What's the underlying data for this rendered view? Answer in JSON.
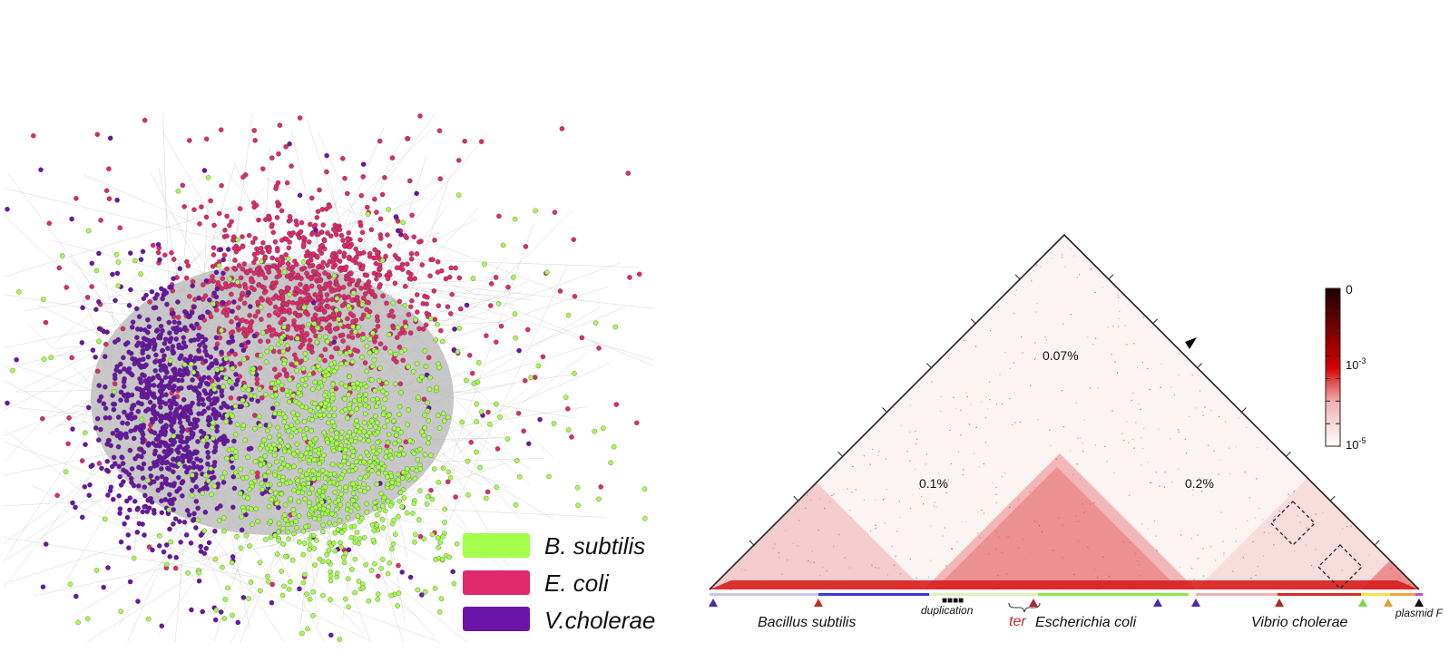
{
  "network": {
    "legend": [
      {
        "label": "B. subtilis",
        "color": "#a3ff4a"
      },
      {
        "label": "E. coli",
        "color": "#e0296a"
      },
      {
        "label": "V.cholerae",
        "color": "#6a14a8"
      }
    ],
    "edge_color": "#9a9a9a"
  },
  "contact_map": {
    "percent_labels": [
      "0.07%",
      "0.1%",
      "0.2%"
    ],
    "colorbar": {
      "top": "0",
      "mid": "10",
      "mid_exp": "-3",
      "bottom": "10",
      "bottom_exp": "-5",
      "colors": [
        "#1a0000",
        "#cc0000",
        "#ffffff"
      ]
    },
    "genomes": [
      "Bacillus subtilis",
      "Escherichia coli",
      "Vibrio cholerae",
      "plasmid F"
    ],
    "annotations": {
      "duplication": "duplication",
      "ter": "ter"
    },
    "genome_colors": {
      "bsub": "#3b3bd6",
      "ecoli": "#8fe84a",
      "vchol": "#d42a2a",
      "plasmid": "#c050d0"
    },
    "map_color": "#d81e1e"
  }
}
